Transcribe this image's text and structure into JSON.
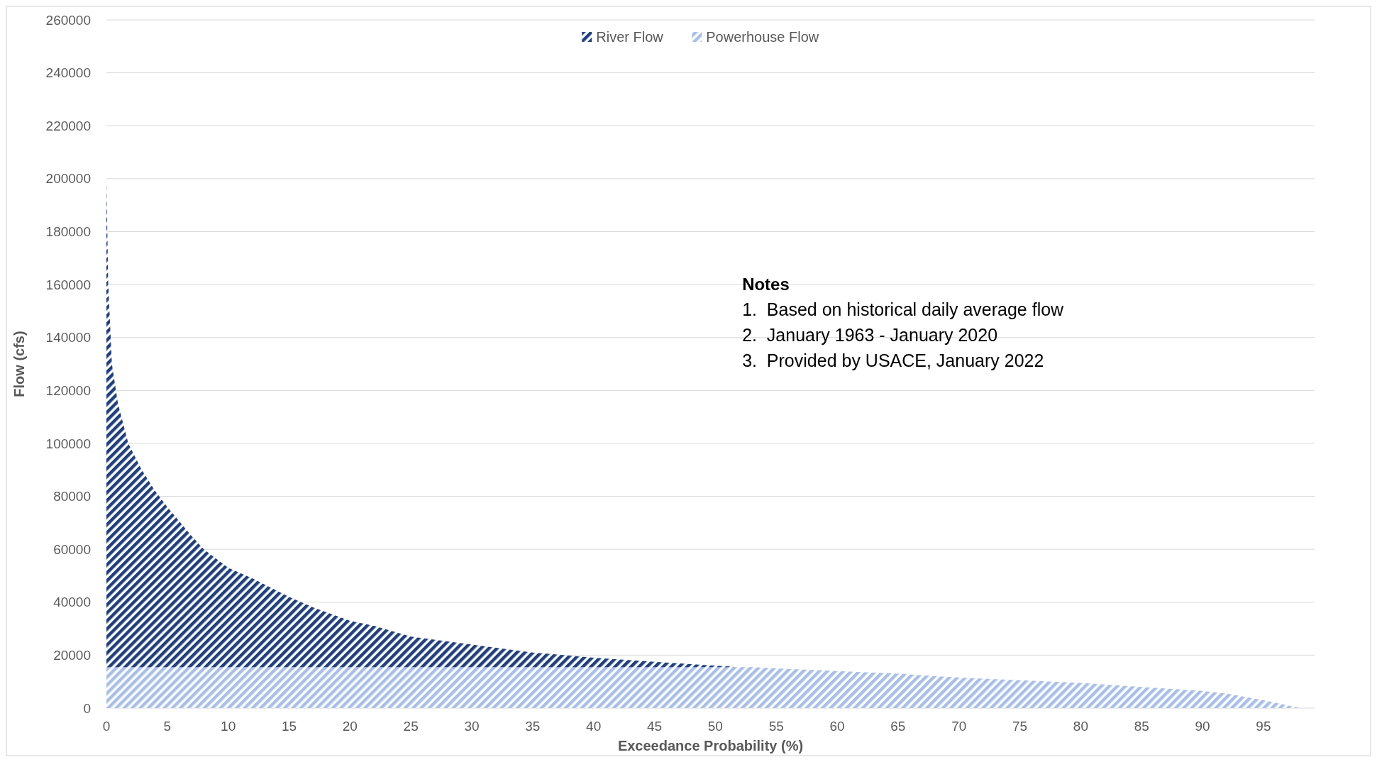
{
  "chart_data": {
    "type": "area",
    "xlabel": "Exceedance Probability (%)",
    "ylabel": "Flow (cfs)",
    "xlim": [
      0,
      99.2
    ],
    "xticks": [
      0,
      5,
      10,
      15,
      20,
      25,
      30,
      35,
      40,
      45,
      50,
      55,
      60,
      65,
      70,
      75,
      80,
      85,
      90,
      95
    ],
    "ylim": [
      0,
      260000
    ],
    "yticks": [
      0,
      20000,
      40000,
      60000,
      80000,
      100000,
      120000,
      140000,
      160000,
      180000,
      200000,
      220000,
      240000,
      260000
    ],
    "grid": "y",
    "legend": "top",
    "series": [
      {
        "name": "River Flow",
        "color": "#203f7a",
        "x": [
          0,
          0.15,
          0.45,
          0.95,
          1.8,
          2.9,
          4,
          5,
          7,
          8,
          10,
          12,
          15,
          17,
          20,
          22,
          25,
          30,
          35,
          40,
          45,
          50,
          51.5
        ],
        "values": [
          200000,
          160000,
          130000,
          115000,
          100000,
          90000,
          82000,
          76000,
          65000,
          60000,
          53000,
          49000,
          42000,
          38000,
          33000,
          31000,
          27000,
          24000,
          21000,
          19000,
          17500,
          16000,
          15700
        ]
      },
      {
        "name": "Powerhouse Flow",
        "color": "#a9bfe6",
        "x": [
          0,
          51.5,
          53,
          55,
          60,
          65,
          70,
          75,
          80,
          85,
          90,
          92,
          95,
          97,
          98
        ],
        "values": [
          15500,
          15500,
          15500,
          15000,
          14000,
          13000,
          11500,
          10500,
          9500,
          8000,
          6500,
          5500,
          3000,
          1000,
          0
        ]
      }
    ],
    "annotations": [
      "Notes",
      "1.  Based on historical daily average flow",
      "2.  January 1963 - January 2020",
      "3.  Provided by USACE, January 2022"
    ]
  }
}
